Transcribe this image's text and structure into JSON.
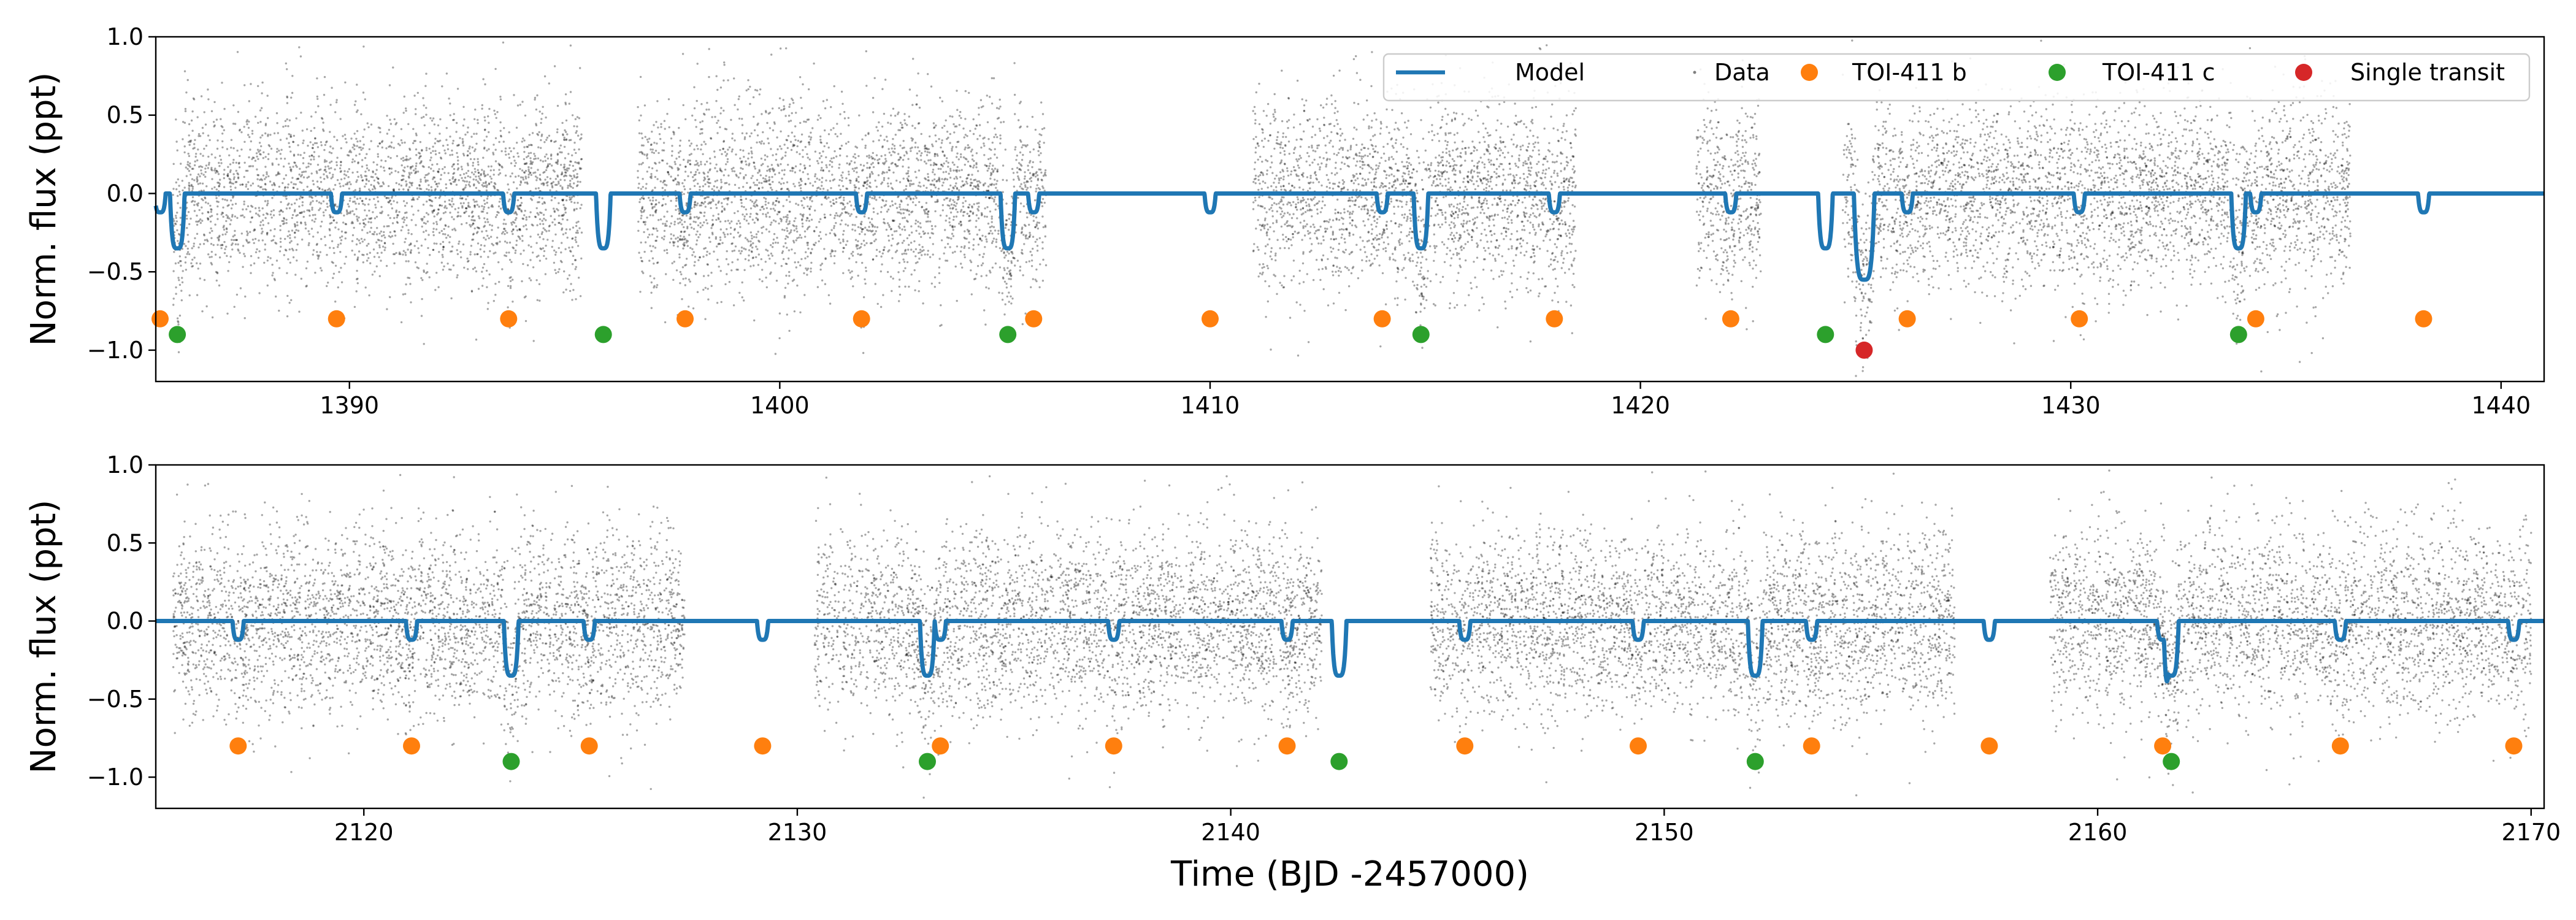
{
  "colors": {
    "model": "#1f77b4",
    "data": "#000000",
    "toi411b": "#ff7f0e",
    "toi411c": "#2ca02c",
    "single": "#d62728"
  },
  "chart_data": [
    {
      "type": "scatter",
      "title": "",
      "xlabel": "",
      "ylabel": "Norm. flux (ppt)",
      "xlim": [
        1385.5,
        1441.0
      ],
      "ylim": [
        -1.2,
        1.0
      ],
      "xticks": [
        1390,
        1400,
        1410,
        1420,
        1430,
        1440
      ],
      "yticks": [
        -1.0,
        -0.5,
        0.0,
        0.5,
        1.0
      ],
      "xtick_labels": [
        "1390",
        "1400",
        "1410",
        "1420",
        "1430",
        "1440"
      ],
      "ytick_labels": [
        "−1.0",
        "−0.5",
        "0.0",
        "0.5",
        "1.0"
      ],
      "legend": {
        "placement": "top-right",
        "entries": [
          "Model",
          "Data",
          "TOI-411 b",
          "TOI-411 c",
          "Single transit"
        ]
      },
      "data_segments": [
        [
          1385.9,
          1395.4
        ],
        [
          1396.7,
          1406.2
        ],
        [
          1411.0,
          1418.5
        ],
        [
          1421.3,
          1422.8
        ],
        [
          1424.7,
          1436.5
        ]
      ],
      "series": [
        {
          "name": "TOI-411 b",
          "y": -0.8,
          "x": [
            1385.6,
            1389.7,
            1393.7,
            1397.8,
            1401.9,
            1405.9,
            1410.0,
            1414.0,
            1418.0,
            1422.1,
            1426.2,
            1430.2,
            1434.3,
            1438.2
          ],
          "depth": -0.12
        },
        {
          "name": "TOI-411 c",
          "y": -0.9,
          "x": [
            1386.0,
            1395.9,
            1405.3,
            1414.9,
            1424.3,
            1433.9
          ],
          "depth": -0.35
        },
        {
          "name": "Single transit",
          "y": -1.0,
          "x": [
            1425.2
          ],
          "depth": -0.55
        }
      ]
    },
    {
      "type": "scatter",
      "title": "",
      "xlabel": "Time (BJD -2457000)",
      "ylabel": "Norm. flux (ppt)",
      "xlim": [
        2115.2,
        2170.3
      ],
      "ylim": [
        -1.2,
        1.0
      ],
      "xticks": [
        2120,
        2130,
        2140,
        2150,
        2160,
        2170
      ],
      "yticks": [
        -1.0,
        -0.5,
        0.0,
        0.5,
        1.0
      ],
      "xtick_labels": [
        "2120",
        "2130",
        "2140",
        "2150",
        "2160",
        "2170"
      ],
      "ytick_labels": [
        "−1.0",
        "−0.5",
        "0.0",
        "0.5",
        "1.0"
      ],
      "data_segments": [
        [
          2115.6,
          2127.4
        ],
        [
          2130.4,
          2142.1
        ],
        [
          2144.6,
          2156.7
        ],
        [
          2158.9,
          2170.0
        ]
      ],
      "series": [
        {
          "name": "TOI-411 b",
          "y": -0.8,
          "x": [
            2117.1,
            2121.1,
            2125.2,
            2129.2,
            2133.3,
            2137.3,
            2141.3,
            2145.4,
            2149.4,
            2153.4,
            2157.5,
            2161.5,
            2165.6,
            2169.6
          ],
          "depth": -0.12
        },
        {
          "name": "TOI-411 c",
          "y": -0.9,
          "x": [
            2123.4,
            2133.0,
            2142.5,
            2152.1,
            2161.7
          ],
          "depth": -0.35
        }
      ]
    }
  ]
}
